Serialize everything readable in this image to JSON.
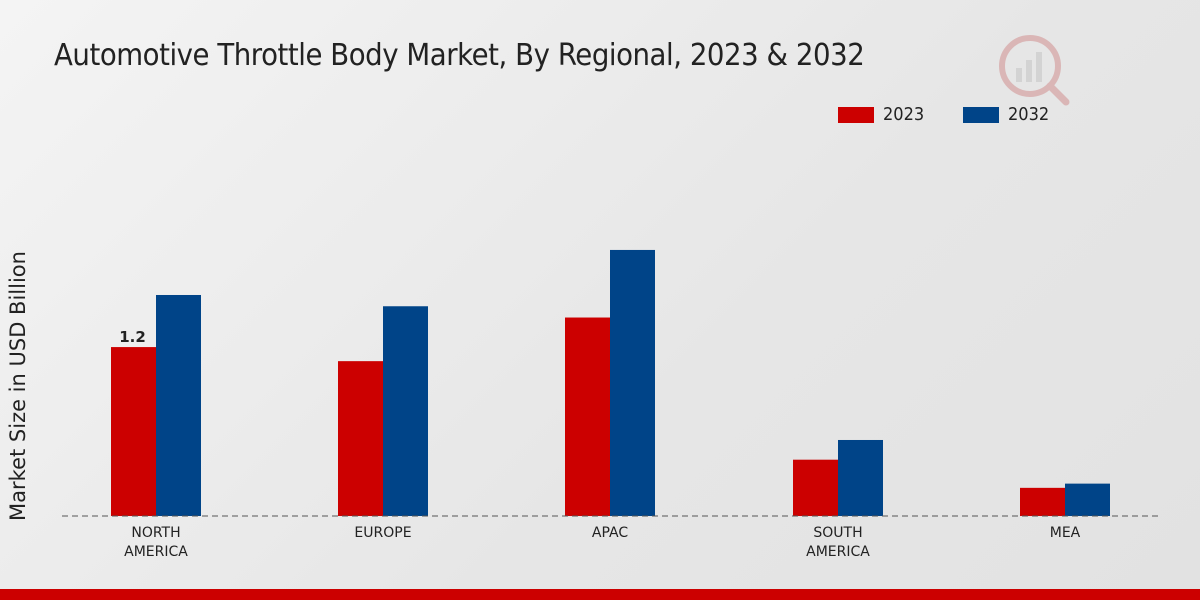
{
  "chart_data": {
    "type": "bar",
    "title": "Automotive Throttle Body Market, By Regional, 2023 & 2032",
    "ylabel": "Market Size in USD Billion",
    "xlabel": "",
    "categories": [
      "NORTH\nAMERICA",
      "EUROPE",
      "APAC",
      "SOUTH\nAMERICA",
      "MEA"
    ],
    "series": [
      {
        "name": "2023",
        "color": "#cc0000",
        "values": [
          1.2,
          1.1,
          1.41,
          0.4,
          0.2
        ]
      },
      {
        "name": "2032",
        "color": "#004488",
        "values": [
          1.57,
          1.49,
          1.89,
          0.54,
          0.23
        ]
      }
    ],
    "data_labels": [
      {
        "series": 0,
        "index": 0,
        "text": "1.2"
      }
    ],
    "ylim": [
      0,
      2.6
    ],
    "grid": false,
    "legend_position": "top-right"
  }
}
